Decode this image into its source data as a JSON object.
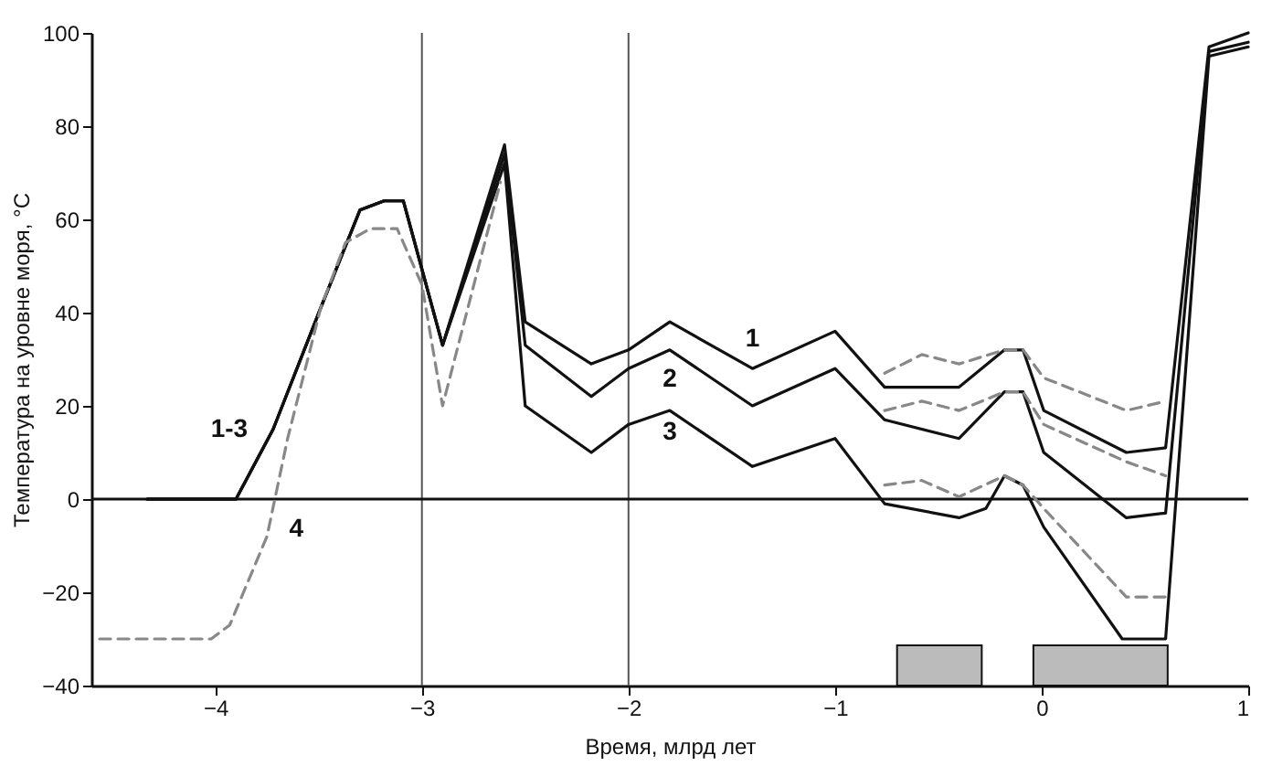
{
  "chart_data": {
    "type": "line",
    "xlabel": "Время, млрд лет",
    "ylabel": "Температура на уровне моря, °C",
    "xlim": [
      -4.6,
      1
    ],
    "xticks": [
      -4,
      -3,
      -2,
      -1,
      0,
      1
    ],
    "ylim": [
      -40,
      100
    ],
    "yticks": [
      -40,
      -20,
      0,
      20,
      40,
      60,
      80,
      100
    ],
    "grid": false,
    "marker": "none",
    "series": [
      {
        "name": "1",
        "color": "#111111",
        "line_style": "solid",
        "x": [
          -4.33,
          -3.9,
          -3.72,
          -3.49,
          -3.3,
          -3.18,
          -3.09,
          -2.9,
          -2.6,
          -2.5,
          -2.18,
          -2.0,
          -1.8,
          -1.4,
          -1.0,
          -0.76,
          -0.4,
          -0.18,
          -0.09,
          0.01,
          0.41,
          0.6,
          0.81,
          1.0
        ],
        "values": [
          0,
          0,
          15,
          41,
          62,
          64,
          64,
          33,
          76,
          38,
          29,
          32,
          38,
          28,
          36,
          24,
          24,
          32,
          32,
          19,
          10,
          11,
          97,
          100
        ]
      },
      {
        "name": "2",
        "color": "#111111",
        "line_style": "solid",
        "x": [
          -4.33,
          -3.9,
          -3.72,
          -3.49,
          -3.3,
          -3.18,
          -3.09,
          -2.9,
          -2.6,
          -2.5,
          -2.18,
          -2.0,
          -1.8,
          -1.4,
          -1.0,
          -0.76,
          -0.4,
          -0.18,
          -0.09,
          0.01,
          0.41,
          0.6,
          0.81,
          1.0
        ],
        "values": [
          0,
          0,
          15,
          41,
          62,
          64,
          64,
          33,
          74,
          33,
          22,
          28,
          32,
          20,
          28,
          17,
          13,
          23,
          23,
          10,
          -4,
          -3,
          96,
          98
        ]
      },
      {
        "name": "3",
        "color": "#111111",
        "line_style": "solid",
        "x": [
          -4.33,
          -3.9,
          -3.72,
          -3.49,
          -3.3,
          -3.18,
          -3.09,
          -2.9,
          -2.6,
          -2.5,
          -2.18,
          -2.0,
          -1.8,
          -1.4,
          -1.0,
          -0.76,
          -0.4,
          -0.27,
          -0.18,
          -0.09,
          0.01,
          0.39,
          0.6,
          0.81,
          1.0
        ],
        "values": [
          0,
          0,
          15,
          41,
          62,
          64,
          64,
          33,
          72,
          20,
          10,
          16,
          19,
          7,
          13,
          -1,
          -4,
          -2,
          5,
          3,
          -6,
          -30,
          -30,
          95,
          97
        ]
      },
      {
        "name": "4",
        "color": "#888888",
        "line_style": "dashed",
        "x": [
          -4.56,
          -4.02,
          -3.93,
          -3.75,
          -3.65,
          -3.49,
          -3.37,
          -3.25,
          -3.12,
          -3.0,
          -2.9,
          -2.62
        ],
        "values": [
          -30,
          -30,
          -27,
          -8,
          13,
          41,
          55,
          58,
          58,
          46,
          20,
          68
        ]
      },
      {
        "color": "#888888",
        "line_style": "dashed",
        "x": [
          -0.76,
          -0.58,
          -0.4,
          -0.18,
          -0.09,
          0.01,
          0.41,
          0.6
        ],
        "values": [
          27,
          31,
          29,
          32,
          32,
          26,
          19,
          21
        ]
      },
      {
        "color": "#888888",
        "line_style": "dashed",
        "x": [
          -0.76,
          -0.58,
          -0.4,
          -0.18,
          -0.09,
          0.01,
          0.41,
          0.6
        ],
        "values": [
          19,
          21,
          19,
          23,
          23,
          16,
          8,
          5
        ]
      },
      {
        "color": "#888888",
        "line_style": "dashed",
        "x": [
          -0.76,
          -0.58,
          -0.4,
          -0.18,
          -0.09,
          0.01,
          0.41,
          0.6
        ],
        "values": [
          3,
          4,
          0.5,
          5,
          3,
          -2,
          -21,
          -21
        ]
      }
    ],
    "ref_lines": [
      {
        "axis": "x",
        "value": -3,
        "color": "#555555"
      },
      {
        "axis": "x",
        "value": -2,
        "color": "#555555"
      },
      {
        "axis": "y",
        "value": 0,
        "color": "#111111"
      }
    ],
    "bands": [
      {
        "axis": "x",
        "from": -0.7,
        "to": -0.29,
        "color": "#bbbbbb"
      },
      {
        "axis": "x",
        "from": -0.04,
        "to": 0.61,
        "color": "#bbbbbb"
      }
    ],
    "annotations": [
      "1-3"
    ]
  }
}
